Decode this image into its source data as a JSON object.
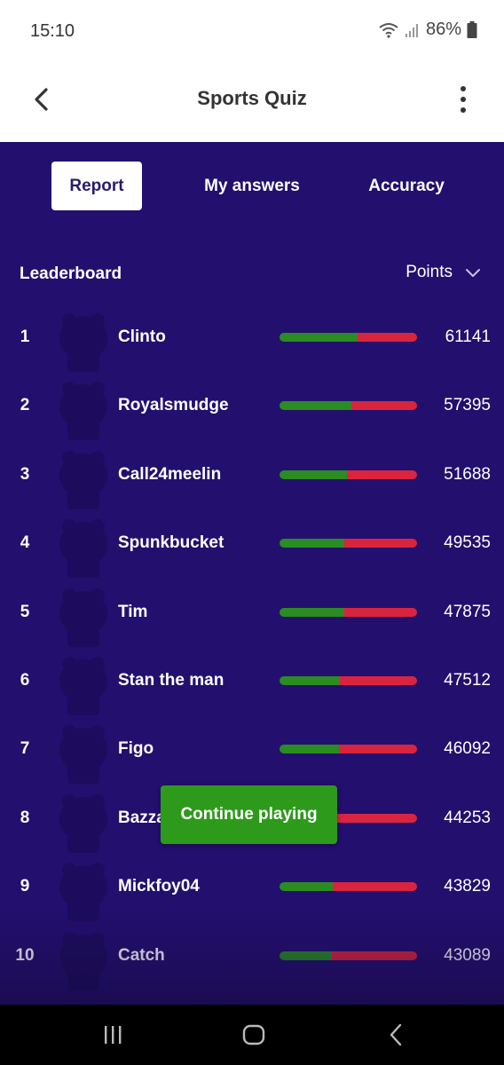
{
  "status_bar": {
    "time": "15:10",
    "battery": "86%",
    "icons": [
      "wifi-icon",
      "signal-icon",
      "battery-icon"
    ]
  },
  "app_bar": {
    "title": "Sports Quiz",
    "back_icon": "back-arrow-icon",
    "more_icon": "more-vertical-icon"
  },
  "tabs": [
    {
      "label": "Report",
      "active": true
    },
    {
      "label": "My answers",
      "active": false
    },
    {
      "label": "Accuracy",
      "active": false
    }
  ],
  "leaderboard": {
    "title": "Leaderboard",
    "sort_label": "Points",
    "sort_icon": "chevron-down-icon",
    "rows": [
      {
        "rank": "1",
        "name": "Clinto",
        "points": "61141",
        "correct_fraction": 0.57
      },
      {
        "rank": "2",
        "name": "Royalsmudge",
        "points": "57395",
        "correct_fraction": 0.52
      },
      {
        "rank": "3",
        "name": "Call24meelin",
        "points": "51688",
        "correct_fraction": 0.49
      },
      {
        "rank": "4",
        "name": "Spunkbucket",
        "points": "49535",
        "correct_fraction": 0.47
      },
      {
        "rank": "5",
        "name": "Tim",
        "points": "47875",
        "correct_fraction": 0.47
      },
      {
        "rank": "6",
        "name": "Stan the man",
        "points": "47512",
        "correct_fraction": 0.44
      },
      {
        "rank": "7",
        "name": "Figo",
        "points": "46092",
        "correct_fraction": 0.43
      },
      {
        "rank": "8",
        "name": "Bazza",
        "points": "44253",
        "correct_fraction": 0.41
      },
      {
        "rank": "9",
        "name": "Mickfoy04",
        "points": "43829",
        "correct_fraction": 0.39
      },
      {
        "rank": "10",
        "name": "Catch",
        "points": "43089",
        "correct_fraction": 0.38
      }
    ]
  },
  "continue_button": {
    "label": "Continue playing"
  },
  "nav_bar": {
    "icons": [
      "recent-apps-icon",
      "home-icon",
      "back-icon"
    ]
  },
  "colors": {
    "background": "#230f6e",
    "correct": "#2a8c23",
    "wrong": "#d9243f",
    "continue_button": "#2e9a1c"
  }
}
